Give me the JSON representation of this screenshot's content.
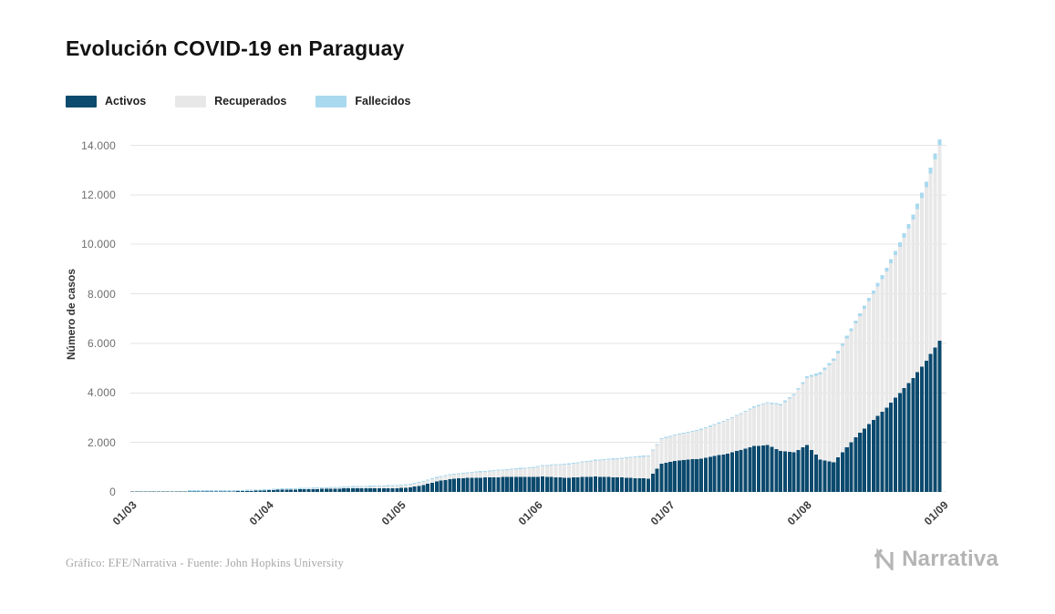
{
  "header": {
    "title": "Evolución COVID-19 en Paraguay"
  },
  "legend": [
    {
      "label": "Activos",
      "color": "#0c4a6e"
    },
    {
      "label": "Recuperados",
      "color": "#e8e8e8"
    },
    {
      "label": "Fallecidos",
      "color": "#a9d9ee"
    }
  ],
  "footer": {
    "source": "Gráfico: EFE/Narrativa - Fuente: John Hopkins University",
    "brand": "Narrativa"
  },
  "chart_data": {
    "type": "bar",
    "stacked": true,
    "title": "Evolución COVID-19 en Paraguay",
    "xlabel": "",
    "ylabel": "Número de casos",
    "ylim": [
      0,
      14350
    ],
    "grid": "horizontal",
    "legend_position": "top-left",
    "y_ticks": [
      0,
      2000,
      4000,
      6000,
      8000,
      10000,
      12000,
      14000
    ],
    "y_tick_labels": [
      "0",
      "2.000",
      "4.000",
      "6.000",
      "8.000",
      "10.000",
      "12.000",
      "14.000"
    ],
    "x_ticks": [
      {
        "label": "01/03",
        "day": 0
      },
      {
        "label": "01/04",
        "day": 31
      },
      {
        "label": "01/05",
        "day": 61
      },
      {
        "label": "01/06",
        "day": 92
      },
      {
        "label": "01/07",
        "day": 122
      },
      {
        "label": "01/08",
        "day": 153
      },
      {
        "label": "01/09",
        "day": 184
      }
    ],
    "span_days": 185,
    "interval_days": 3,
    "dates": [
      "01/03",
      "04/03",
      "07/03",
      "10/03",
      "13/03",
      "16/03",
      "19/03",
      "22/03",
      "25/03",
      "28/03",
      "31/03",
      "03/04",
      "06/04",
      "09/04",
      "12/04",
      "15/04",
      "18/04",
      "21/04",
      "24/04",
      "27/04",
      "30/04",
      "03/05",
      "06/05",
      "09/05",
      "12/05",
      "15/05",
      "18/05",
      "21/05",
      "24/05",
      "27/05",
      "30/05",
      "02/06",
      "05/06",
      "08/06",
      "11/06",
      "14/06",
      "17/06",
      "20/06",
      "23/06",
      "26/06",
      "29/06",
      "02/07",
      "05/07",
      "08/07",
      "11/07",
      "14/07",
      "17/07",
      "20/07",
      "23/07",
      "26/07",
      "29/07",
      "01/08",
      "04/08",
      "07/08",
      "10/08",
      "13/08",
      "16/08",
      "19/08",
      "22/08",
      "25/08",
      "28/08",
      "31/08"
    ],
    "series": [
      {
        "name": "Activos",
        "color": "#0c4a6e",
        "values": [
          1,
          1,
          5,
          6,
          9,
          11,
          15,
          20,
          30,
          46,
          56,
          85,
          96,
          108,
          119,
          130,
          140,
          150,
          148,
          145,
          150,
          180,
          280,
          420,
          520,
          560,
          575,
          585,
          600,
          615,
          600,
          620,
          590,
          570,
          600,
          620,
          600,
          580,
          560,
          540,
          1150,
          1250,
          1300,
          1350,
          1450,
          1550,
          1700,
          1850,
          1900,
          1650,
          1600,
          1900,
          1300,
          1200,
          1800,
          2400,
          2900,
          3400,
          4000,
          4600,
          5300,
          6100
        ]
      },
      {
        "name": "Recuperados",
        "color": "#e8e8e8",
        "values": [
          0,
          0,
          0,
          0,
          0,
          0,
          1,
          1,
          2,
          3,
          7,
          10,
          12,
          16,
          21,
          28,
          36,
          49,
          62,
          78,
          94,
          110,
          125,
          140,
          158,
          180,
          210,
          242,
          270,
          300,
          350,
          420,
          490,
          540,
          590,
          640,
          700,
          760,
          830,
          900,
          980,
          1030,
          1090,
          1160,
          1250,
          1350,
          1450,
          1560,
          1680,
          1850,
          2300,
          2700,
          3450,
          4100,
          4400,
          4700,
          5100,
          5500,
          5900,
          6400,
          7000,
          7900
        ]
      },
      {
        "name": "Fallecidos",
        "color": "#a9d9ee",
        "values": [
          0,
          0,
          0,
          0,
          0,
          1,
          1,
          1,
          2,
          3,
          3,
          3,
          4,
          5,
          6,
          6,
          7,
          8,
          9,
          9,
          10,
          10,
          10,
          10,
          11,
          11,
          11,
          11,
          11,
          11,
          11,
          11,
          12,
          12,
          13,
          13,
          14,
          14,
          15,
          16,
          20,
          22,
          25,
          28,
          31,
          35,
          40,
          45,
          50,
          55,
          61,
          70,
          80,
          90,
          105,
          120,
          140,
          160,
          180,
          200,
          220,
          240
        ]
      }
    ]
  }
}
